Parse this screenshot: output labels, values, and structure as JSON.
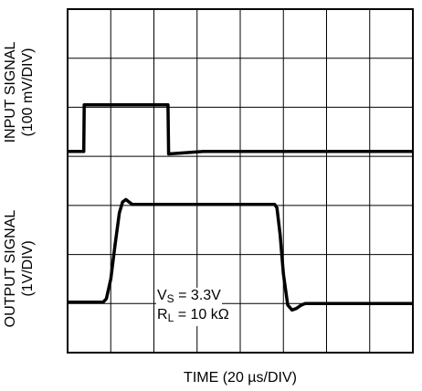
{
  "chart_data": {
    "type": "line",
    "title": "",
    "xlabel": "TIME (20 µs/DIV)",
    "ylabel_top": [
      "INPUT SIGNAL",
      "(100 mV/DIV)"
    ],
    "ylabel_bottom": [
      "OUTPUT SIGNAL",
      "(1V/DIV)"
    ],
    "x_divisions": 8,
    "y_divisions": 7,
    "grid": true,
    "xlim": [
      0,
      160
    ],
    "x_unit": "µs",
    "series": [
      {
        "name": "",
        "points": [
          [
            0,
            4.1
          ],
          [
            7.5,
            4.1
          ],
          [
            7.7,
            5.05
          ],
          [
            46.5,
            5.05
          ],
          [
            46.8,
            4.05
          ],
          [
            63,
            4.1
          ],
          [
            160,
            4.1
          ]
        ]
      },
      {
        "name": "",
        "points": [
          [
            0,
            1.03
          ],
          [
            16.5,
            1.03
          ],
          [
            18,
            1.1
          ],
          [
            20,
            1.5
          ],
          [
            22,
            2.2
          ],
          [
            24,
            2.85
          ],
          [
            25.5,
            3.07
          ],
          [
            27,
            3.12
          ],
          [
            28.5,
            3.07
          ],
          [
            30,
            3.02
          ],
          [
            96,
            3.02
          ],
          [
            97,
            2.95
          ],
          [
            98.5,
            2.4
          ],
          [
            100,
            1.6
          ],
          [
            102,
            0.97
          ],
          [
            104,
            0.87
          ],
          [
            106,
            0.9
          ],
          [
            108,
            0.96
          ],
          [
            110,
            1.0
          ],
          [
            160,
            1.0
          ]
        ]
      }
    ],
    "annotations": {
      "vs_main": "V",
      "vs_sub": "S",
      "vs_rest": " = 3.3V",
      "rl_main": "R",
      "rl_sub": "L",
      "rl_rest": " = 10 kΩ"
    }
  }
}
